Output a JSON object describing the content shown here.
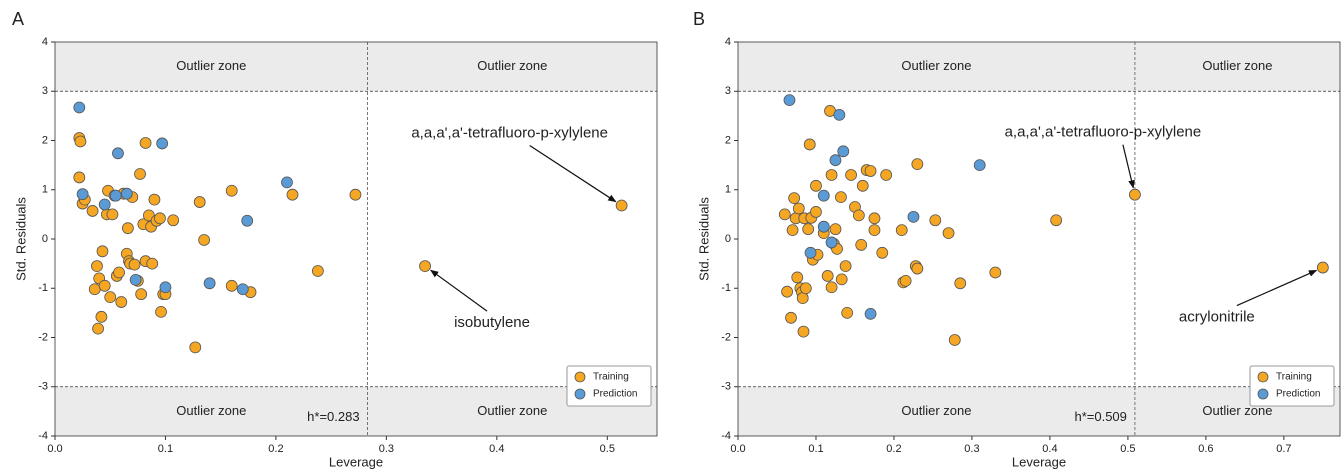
{
  "chart_data": [
    {
      "type": "scatter",
      "title": "A",
      "xlabel": "Leverage",
      "ylabel": "Std. Residuals",
      "xlim": [
        0,
        0.545
      ],
      "ylim": [
        -4,
        4
      ],
      "xticks": [
        {
          "value": 0,
          "label": "0.0"
        },
        0.1,
        0.2,
        0.3,
        0.4,
        0.5
      ],
      "yticks": [
        -4,
        -3,
        -2,
        -1,
        0,
        1,
        2,
        3,
        4
      ],
      "limits": [
        -3,
        3
      ],
      "h_star": {
        "value": 0.283,
        "label": "h*=0.283"
      },
      "zone_labels": [
        "Outlier zone",
        "Outlier zone",
        "Outlier zone",
        "Outlier zone"
      ],
      "legend": "lower right",
      "series": [
        {
          "name": "Training",
          "color": "#f5a623",
          "x": [
            0.022,
            0.023,
            0.022,
            0.025,
            0.027,
            0.034,
            0.036,
            0.038,
            0.039,
            0.04,
            0.042,
            0.043,
            0.045,
            0.047,
            0.048,
            0.05,
            0.052,
            0.054,
            0.056,
            0.058,
            0.06,
            0.062,
            0.065,
            0.066,
            0.067,
            0.068,
            0.07,
            0.072,
            0.075,
            0.077,
            0.078,
            0.08,
            0.082,
            0.082,
            0.085,
            0.087,
            0.088,
            0.09,
            0.092,
            0.095,
            0.096,
            0.098,
            0.1,
            0.107,
            0.127,
            0.131,
            0.135,
            0.16,
            0.16,
            0.177,
            0.215,
            0.238,
            0.272,
            0.335,
            0.513
          ],
          "values": [
            2.05,
            1.98,
            1.25,
            0.72,
            0.8,
            0.57,
            -1.02,
            -0.55,
            -1.82,
            -0.8,
            -1.58,
            -0.25,
            -0.95,
            0.5,
            0.98,
            -1.18,
            0.5,
            0.88,
            -0.75,
            -0.68,
            -1.28,
            0.92,
            -0.3,
            0.22,
            -0.45,
            -0.5,
            0.85,
            -0.52,
            -0.85,
            1.32,
            -1.12,
            0.3,
            -0.45,
            1.95,
            0.48,
            0.25,
            -0.5,
            0.8,
            0.37,
            0.42,
            -1.48,
            -1.12,
            -1.12,
            0.38,
            -2.2,
            0.75,
            -0.02,
            0.98,
            -0.95,
            -1.08,
            0.9,
            -0.65,
            0.9,
            -0.55,
            0.68
          ]
        },
        {
          "name": "Prediction",
          "color": "#5b9bd5",
          "x": [
            0.022,
            0.025,
            0.045,
            0.055,
            0.057,
            0.065,
            0.073,
            0.097,
            0.1,
            0.14,
            0.17,
            0.174,
            0.21
          ],
          "values": [
            2.67,
            0.91,
            0.7,
            0.88,
            1.74,
            0.92,
            -0.83,
            1.94,
            -0.98,
            -0.9,
            -1.02,
            0.37,
            1.15
          ]
        }
      ],
      "annotations": [
        {
          "text": "a,a,a',a'-tetrafluoro-p-xylylene",
          "x": 0.513,
          "y": 0.68
        },
        {
          "text": "isobutylene",
          "x": 0.335,
          "y": -0.55
        }
      ]
    },
    {
      "type": "scatter",
      "title": "B",
      "xlabel": "Leverage",
      "ylabel": "Std. Residuals",
      "xlim": [
        0,
        0.772
      ],
      "ylim": [
        -4,
        4
      ],
      "xticks": [
        {
          "value": 0,
          "label": "0.0"
        },
        0.1,
        0.2,
        0.3,
        0.4,
        0.5,
        0.6,
        0.7
      ],
      "yticks": [
        -4,
        -3,
        -2,
        -1,
        0,
        1,
        2,
        3,
        4
      ],
      "limits": [
        -3,
        3
      ],
      "h_star": {
        "value": 0.509,
        "label": "h*=0.509"
      },
      "zone_labels": [
        "Outlier zone",
        "Outlier zone",
        "Outlier zone",
        "Outlier zone"
      ],
      "legend": "lower right",
      "series": [
        {
          "name": "Training",
          "color": "#f5a623",
          "x": [
            0.06,
            0.063,
            0.068,
            0.07,
            0.072,
            0.074,
            0.076,
            0.078,
            0.08,
            0.082,
            0.083,
            0.084,
            0.085,
            0.087,
            0.09,
            0.092,
            0.094,
            0.096,
            0.1,
            0.1,
            0.102,
            0.11,
            0.115,
            0.118,
            0.12,
            0.12,
            0.123,
            0.125,
            0.127,
            0.132,
            0.133,
            0.138,
            0.14,
            0.145,
            0.15,
            0.155,
            0.158,
            0.16,
            0.165,
            0.17,
            0.175,
            0.175,
            0.185,
            0.19,
            0.21,
            0.212,
            0.215,
            0.228,
            0.23,
            0.23,
            0.253,
            0.27,
            0.278,
            0.285,
            0.33,
            0.408,
            0.509,
            0.75
          ],
          "values": [
            0.5,
            -1.07,
            -1.6,
            0.18,
            0.83,
            0.42,
            -0.78,
            0.62,
            -1.0,
            -1.08,
            -1.2,
            -1.88,
            0.42,
            -1.0,
            0.2,
            1.92,
            0.43,
            -0.42,
            1.08,
            0.55,
            -0.32,
            0.12,
            -0.75,
            2.6,
            -0.98,
            1.3,
            -0.1,
            0.2,
            -0.2,
            0.85,
            -0.82,
            -0.55,
            -1.5,
            1.3,
            0.65,
            0.48,
            -0.12,
            1.08,
            1.4,
            1.38,
            0.42,
            0.18,
            -0.28,
            1.3,
            0.18,
            -0.88,
            -0.85,
            -0.55,
            -0.6,
            1.52,
            0.38,
            0.12,
            -2.05,
            -0.9,
            -0.68,
            0.38,
            0.9,
            -0.58
          ]
        },
        {
          "name": "Prediction",
          "color": "#5b9bd5",
          "x": [
            0.066,
            0.093,
            0.11,
            0.11,
            0.12,
            0.125,
            0.13,
            0.135,
            0.17,
            0.225,
            0.31
          ],
          "values": [
            2.82,
            -0.28,
            0.25,
            0.88,
            -0.07,
            1.6,
            2.52,
            1.78,
            -1.52,
            0.45,
            1.5
          ]
        }
      ],
      "annotations": [
        {
          "text": "a,a,a',a'-tetrafluoro-p-xylylene",
          "x": 0.509,
          "y": 0.9
        },
        {
          "text": "acrylonitrile",
          "x": 0.75,
          "y": -0.58
        }
      ]
    }
  ]
}
